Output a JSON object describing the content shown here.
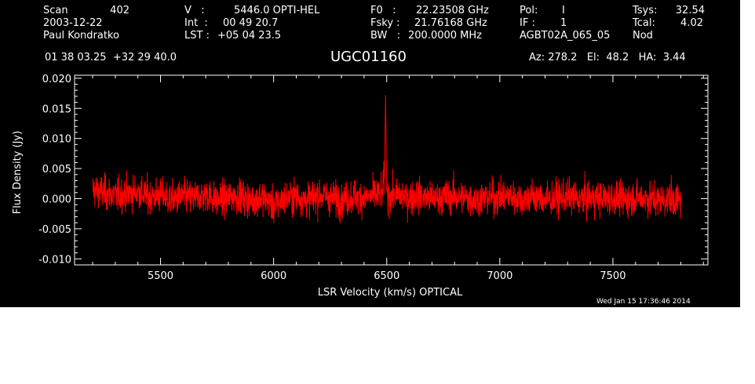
{
  "header": {
    "col1": {
      "scan_label": "Scan",
      "scan_value": "402",
      "date": "2003-12-22",
      "observer": "Paul Kondratko"
    },
    "col2": {
      "v_label": "V   :",
      "v_value": "5446.0 OPTI-HEL",
      "int_label": "Int  :",
      "int_value": "00 49 20.7",
      "lst_label": "LST :",
      "lst_value": "+05 04 23.5"
    },
    "col3": {
      "f0_label": "F0   :",
      "f0_value": "22.23508 GHz",
      "fsky_label": "Fsky :",
      "fsky_value": "21.76168 GHz",
      "bw_label": "BW   :",
      "bw_value": "200.0000 MHz"
    },
    "col4": {
      "pol_label": "Pol:",
      "pol_value": "I",
      "if_label": "IF :",
      "if_value": "1",
      "project": "AGBT02A_065_05"
    },
    "col5": {
      "tsys_label": "Tsys:",
      "tsys_value": "32.54",
      "tcal_label": "Tcal:",
      "tcal_value": "4.02",
      "mode": "Nod"
    },
    "coords": "01 38 03.25  +32 29 40.0",
    "object": "UGC01160",
    "pointing": "Az: 278.2   El:  48.2   HA:  3.44",
    "timestamp": "Wed Jan 15 17:36:46 2014"
  },
  "colors": {
    "background": "#000000",
    "axes": "#ffffff",
    "spectrum": "#ff0000"
  },
  "chart_data": {
    "type": "line",
    "title": "UGC01160",
    "xlabel": "LSR Velocity (km/s) OPTICAL",
    "ylabel": "Flux Density (Jy)",
    "xlim": [
      5120,
      7920
    ],
    "ylim": [
      -0.011,
      0.0205
    ],
    "xticks": [
      5500,
      6000,
      6500,
      7000,
      7500
    ],
    "xtick_labels": [
      "5500",
      "6000",
      "6500",
      "7000",
      "7500"
    ],
    "yticks": [
      -0.01,
      -0.005,
      0.0,
      0.005,
      0.01,
      0.015,
      0.02
    ],
    "ytick_labels": [
      "-0.010",
      "-0.005",
      "0.000",
      "0.005",
      "0.010",
      "0.015",
      "0.020"
    ],
    "grid": false,
    "series": [
      {
        "x": [
          5200,
          5250,
          5300,
          5350,
          5400,
          5450,
          5500,
          5550,
          5600,
          5650,
          5700,
          5750,
          5800,
          5850,
          5900,
          5950,
          6000,
          6050,
          6100,
          6150,
          6200,
          6250,
          6300,
          6350,
          6400,
          6450,
          6480,
          6490,
          6495,
          6500,
          6510,
          6550,
          6600,
          6650,
          6700,
          6750,
          6800,
          6850,
          6900,
          6950,
          7000,
          7050,
          7100,
          7150,
          7200,
          7250,
          7300,
          7350,
          7400,
          7450,
          7500,
          7550,
          7600,
          7650,
          7700,
          7750,
          7800
        ],
        "y": [
          0.0015,
          0.001,
          0.0005,
          0.0008,
          0.0012,
          0.0003,
          0.0006,
          -0.0002,
          0.0004,
          0.0001,
          0.0007,
          -0.0003,
          0.0002,
          0.0005,
          -0.0004,
          0.0003,
          -0.0012,
          0.0001,
          0.0004,
          -0.0002,
          0.0006,
          0.0002,
          -0.0003,
          0.0004,
          0.0001,
          0.0005,
          0.0008,
          0.0035,
          0.0172,
          0.0012,
          0.0004,
          0.0006,
          0.0002,
          0.0005,
          -0.0001,
          0.0003,
          0.0004,
          0.0001,
          -0.0002,
          0.0003,
          0.0002,
          0.0004,
          0.0,
          0.0003,
          -0.0002,
          0.0001,
          0.0003,
          -0.0001,
          0.0002,
          0.0,
          0.0001,
          -0.0002,
          0.0002,
          0.0001,
          -0.0003,
          0.0,
          -0.0005
        ],
        "rms": 0.002
      }
    ]
  }
}
